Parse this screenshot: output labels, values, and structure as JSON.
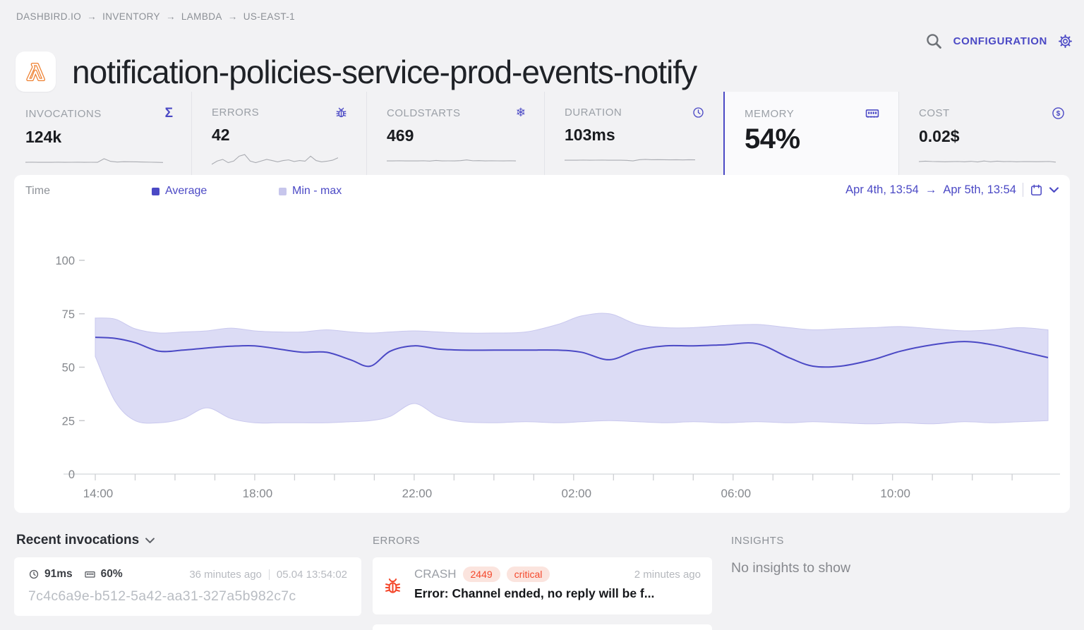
{
  "breadcrumb": {
    "separator": "→",
    "items": [
      "DASHBIRD.IO",
      "INVENTORY",
      "LAMBDA",
      "US-EAST-1"
    ]
  },
  "header": {
    "title": "notification-policies-service-prod-events-notify",
    "configuration_label": "CONFIGURATION"
  },
  "metrics": [
    {
      "label": "INVOCATIONS",
      "value": "124k",
      "icon": "sigma-icon",
      "sparkline": [
        3,
        3.1,
        3,
        3.05,
        3,
        3.1,
        3,
        3.05,
        3.1,
        3,
        3.05,
        3,
        5.2,
        3.6,
        3.2,
        3.4,
        3.35,
        3.3,
        3.2,
        3.1,
        3,
        2.9
      ]
    },
    {
      "label": "ERRORS",
      "value": "42",
      "icon": "bug-icon",
      "sparkline": [
        0.5,
        2.5,
        3.5,
        1.5,
        2.5,
        5.5,
        6.5,
        2.5,
        1.5,
        2.5,
        3.5,
        2.8,
        2,
        2.8,
        3.2,
        2.2,
        2.8,
        2.4,
        5.5,
        2.8,
        2,
        2.4,
        3,
        4.5
      ]
    },
    {
      "label": "COLDSTARTS",
      "value": "469",
      "icon": "snowflake-icon",
      "sparkline": [
        3,
        3,
        3.1,
        3,
        3.05,
        3,
        3.1,
        2.9,
        3.3,
        3,
        3.05,
        3,
        3.2,
        3.6,
        3.1,
        3.2,
        3,
        3.1,
        3.05,
        3,
        3.1,
        3
      ]
    },
    {
      "label": "DURATION",
      "value": "103ms",
      "icon": "clock-icon",
      "sparkline": [
        3,
        3.05,
        3,
        3.1,
        3,
        3.05,
        3.1,
        3,
        3.05,
        3,
        2.9,
        2.6,
        3.3,
        3.5,
        3.3,
        3.35,
        3.3,
        3.25,
        3.3,
        3.2,
        3.3,
        3.25
      ]
    },
    {
      "label": "MEMORY",
      "value": "54%",
      "icon": "memory-chip-icon",
      "selected": true
    },
    {
      "label": "COST",
      "value": "0.02$",
      "icon": "dollar-icon",
      "sparkline": [
        3,
        3.3,
        3.1,
        3,
        2.9,
        3,
        3.1,
        2.9,
        3.2,
        2.8,
        3.4,
        2.9,
        3.3,
        3,
        3.1,
        2.9,
        3.05,
        3,
        2.95,
        3,
        3.1,
        2.7
      ]
    }
  ],
  "chart": {
    "time_label": "Time",
    "legend_average": "Average",
    "legend_minmax": "Min - max",
    "range_start": "Apr 4th, 13:54",
    "range_arrow": "→",
    "range_end": "Apr 5th, 13:54"
  },
  "chart_data": {
    "type": "line",
    "description": "Memory utilisation % over 24h, average line with min-max band",
    "x_unit": "hours from 14:00",
    "x_range": 23.9,
    "x": [
      0,
      0.5,
      1.0,
      1.6,
      2.2,
      2.8,
      3.4,
      4.0,
      4.6,
      5.2,
      5.8,
      6.4,
      6.9,
      7.4,
      8.0,
      8.6,
      9.2,
      10.0,
      10.8,
      11.6,
      12.2,
      12.9,
      13.6,
      14.3,
      15.0,
      15.8,
      16.6,
      17.4,
      18.0,
      18.7,
      19.5,
      20.2,
      21.0,
      21.8,
      22.5,
      23.2,
      23.9
    ],
    "series": [
      {
        "name": "Average",
        "values": [
          64,
          63.5,
          61.5,
          57.5,
          58,
          59,
          59.8,
          60,
          58.5,
          57,
          57,
          53.5,
          50.5,
          57.5,
          60,
          58.5,
          58,
          58,
          58,
          58,
          57,
          53.5,
          58,
          60,
          60,
          60.5,
          61,
          54.5,
          50.5,
          50.5,
          53.5,
          57.5,
          60.5,
          62,
          60.5,
          57.5,
          54.5
        ]
      },
      {
        "name": "Min",
        "values": [
          55,
          34,
          25,
          24,
          26,
          31,
          26,
          24,
          24,
          24,
          24,
          24.5,
          25,
          27,
          33,
          27,
          24.5,
          24,
          24.5,
          24,
          24.5,
          25,
          24.5,
          24,
          24.5,
          24,
          24.5,
          24,
          24.5,
          24,
          23.5,
          24,
          23.5,
          24.5,
          24,
          24.5,
          25
        ]
      },
      {
        "name": "Max",
        "values": [
          73,
          72.5,
          68,
          66,
          66.5,
          67,
          68.3,
          67,
          66.5,
          66.5,
          67.5,
          66.5,
          66,
          66.5,
          67,
          66.5,
          66,
          66,
          66.5,
          70,
          74,
          75,
          70,
          68.5,
          68.5,
          69.5,
          70,
          68.5,
          67.5,
          68,
          68.5,
          69,
          68,
          67,
          67.5,
          68.5,
          67.5
        ]
      }
    ],
    "ylim": [
      0,
      100
    ],
    "yticks": [
      0,
      25,
      50,
      75,
      100
    ],
    "xticks": [
      {
        "h": 0,
        "label": "14:00"
      },
      {
        "h": 4,
        "label": "18:00"
      },
      {
        "h": 8,
        "label": "22:00"
      },
      {
        "h": 12,
        "label": "02:00"
      },
      {
        "h": 16,
        "label": "06:00"
      },
      {
        "h": 20,
        "label": "10:00"
      }
    ],
    "minor_ticks_every_hour": true,
    "grid": false,
    "legend": [
      "Average",
      "Min - max"
    ],
    "legend_position": "top"
  },
  "recent_invocations": {
    "title": "Recent invocations",
    "entry": {
      "duration": "91ms",
      "memory": "60%",
      "relative_time": "36 minutes ago",
      "timestamp": "05.04 13:54:02",
      "request_id": "7c4c6a9e-b512-5a42-aa31-327a5b982c7c"
    }
  },
  "errors_section": {
    "title": "ERRORS",
    "entry": {
      "type": "CRASH",
      "count": "2449",
      "severity": "critical",
      "relative_time": "2 minutes ago",
      "message": "Error: Channel ended, no reply will be f..."
    }
  },
  "insights_section": {
    "title": "INSIGHTS",
    "empty_message": "No insights to show"
  },
  "colors": {
    "accent": "#4b49c5",
    "band": "#dcdcf5",
    "band_edge": "#c9c8ee",
    "error": "#f4472b",
    "error_badge_bg": "#fbe4de",
    "lambda_orange": "#ee7f2e",
    "sparkline": "#aaacb2",
    "axis": "#85888d"
  }
}
